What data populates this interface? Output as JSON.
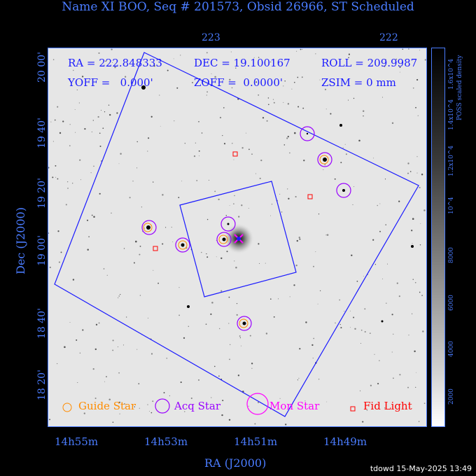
{
  "title": "Name XI BOO, Seq # 201573, Obsid 26966, ST Scheduled",
  "info": {
    "ra": "RA = 222.848333",
    "dec": "DEC = 19.100167",
    "roll": "ROLL = 209.9987",
    "yoff": "YOFF =   0.000'",
    "zoff": "ZOFF =  0.0000'",
    "zsim": "ZSIM = 0 mm"
  },
  "top_axis": {
    "ticks": [
      "223",
      "222"
    ]
  },
  "x_axis": {
    "label": "RA (J2000)",
    "ticks": [
      "14h55m",
      "14h53m",
      "14h51m",
      "14h49m"
    ]
  },
  "y_axis": {
    "label": "Dec (J2000)",
    "ticks": [
      "20 00'",
      "19 40'",
      "19 20'",
      "19 00'",
      "18 40'",
      "18 20'"
    ]
  },
  "colorbar": {
    "label": "POSS scaled density",
    "ticks": [
      "1.6x10^4",
      "1.4x10^4",
      "1.2x10^4",
      "10^4",
      "8000",
      "6000",
      "4000",
      "2000"
    ]
  },
  "legend": {
    "guide": "Guide Star",
    "acq": "Acq Star",
    "mon": "Mon Star",
    "fid": "Fid Light"
  },
  "colors": {
    "guide": "#ff8c00",
    "acq": "#9900ff",
    "mon": "#ff00ff",
    "fid": "#ff0000",
    "axis": "#4a7cff",
    "footprint": "#1a1aff"
  },
  "footer": "tdowd 15-May-2025 13:49"
}
